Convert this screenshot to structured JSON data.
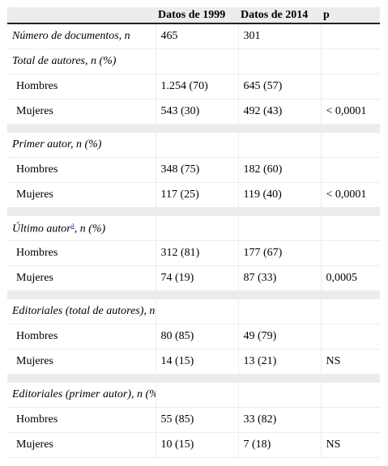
{
  "headers": [
    "",
    "Datos de 1999",
    "Datos de 2014",
    "p"
  ],
  "rows": [
    {
      "kind": "row",
      "cells": [
        "Número de documentos, n",
        "465",
        "301",
        ""
      ],
      "section": true
    },
    {
      "kind": "row",
      "cells": [
        "Total de autores, n (%)",
        "",
        "",
        ""
      ],
      "section": true
    },
    {
      "kind": "row",
      "cells": [
        "Hombres",
        "1.254 (70)",
        "645 (57)",
        ""
      ]
    },
    {
      "kind": "row",
      "cells": [
        "Mujeres",
        "543 (30)",
        "492 (43)",
        "< 0,0001"
      ]
    },
    {
      "kind": "spacer"
    },
    {
      "kind": "row",
      "cells": [
        "Primer autor, n (%)",
        "",
        "",
        ""
      ],
      "section": true
    },
    {
      "kind": "row",
      "cells": [
        "Hombres",
        "348 (75)",
        "182 (60)",
        ""
      ]
    },
    {
      "kind": "row",
      "cells": [
        "Mujeres",
        "117 (25)",
        "119 (40)",
        "< 0,0001"
      ]
    },
    {
      "kind": "spacer"
    },
    {
      "kind": "row",
      "cells": [
        "Último autor",
        "",
        "",
        ""
      ],
      "section": true,
      "footnote": "a",
      "suffix": ", n (%)"
    },
    {
      "kind": "row",
      "cells": [
        "Hombres",
        "312 (81)",
        "177 (67)",
        ""
      ]
    },
    {
      "kind": "row",
      "cells": [
        "Mujeres",
        "74 (19)",
        "87 (33)",
        "0,0005"
      ]
    },
    {
      "kind": "spacer"
    },
    {
      "kind": "row",
      "cells": [
        "Editoriales (total de autores), n (%)",
        "",
        "",
        ""
      ],
      "section": true
    },
    {
      "kind": "row",
      "cells": [
        "Hombres",
        "80 (85)",
        "49 (79)",
        ""
      ]
    },
    {
      "kind": "row",
      "cells": [
        "Mujeres",
        "14 (15)",
        "13 (21)",
        "NS"
      ]
    },
    {
      "kind": "spacer"
    },
    {
      "kind": "row",
      "cells": [
        "Editoriales (primer autor), n (%)",
        "",
        "",
        ""
      ],
      "section": true
    },
    {
      "kind": "row",
      "cells": [
        "Hombres",
        "55 (85)",
        "33 (82)",
        ""
      ]
    },
    {
      "kind": "row",
      "cells": [
        "Mujeres",
        "10 (15)",
        "7 (18)",
        "NS"
      ]
    }
  ]
}
